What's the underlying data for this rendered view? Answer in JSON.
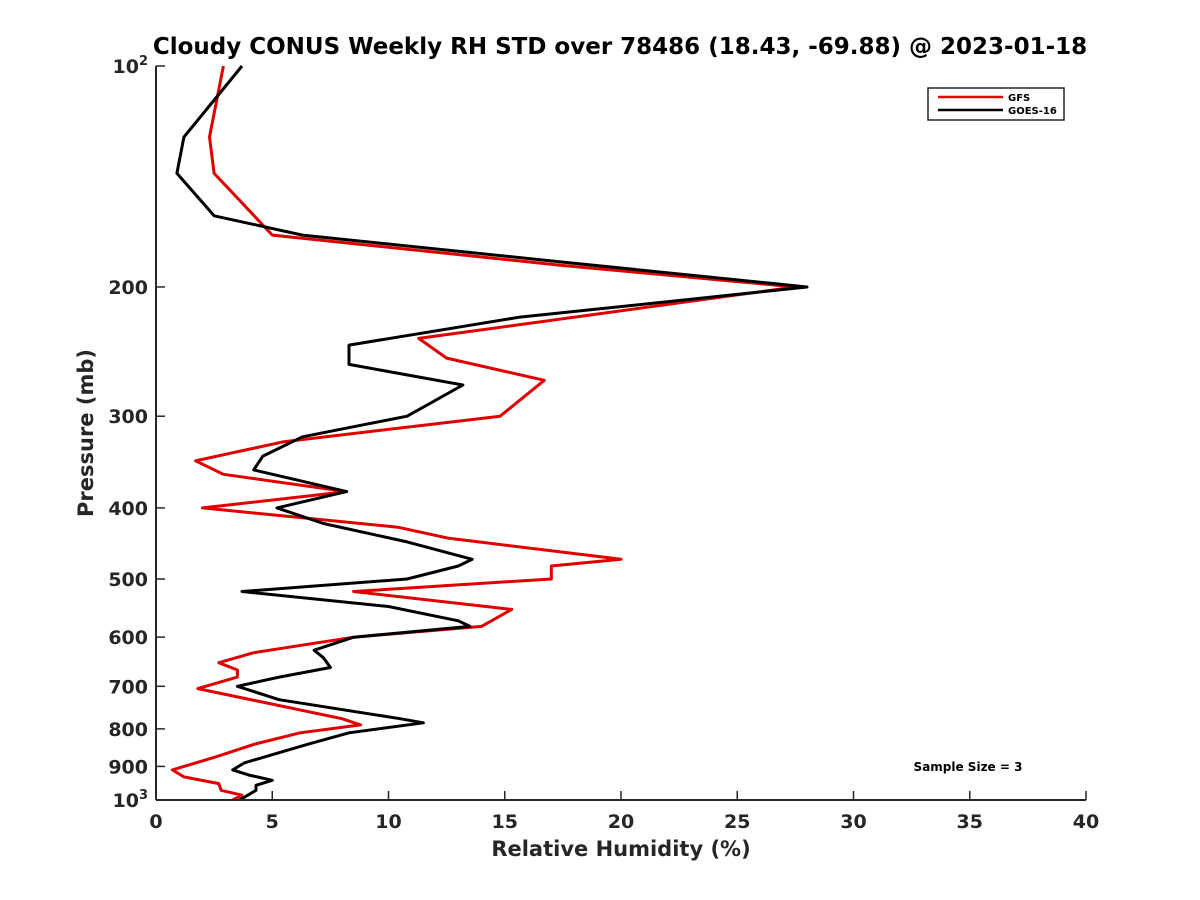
{
  "chart_data": {
    "type": "line",
    "title": "Cloudy CONUS Weekly RH STD over 78486 (18.43, -69.88) @ 2023-01-18",
    "xlabel": "Relative Humidity (%)",
    "ylabel": "Pressure (mb)",
    "xlim": [
      0,
      40
    ],
    "ylim": [
      100,
      1000
    ],
    "y_scale": "log",
    "y_reversed": true,
    "x_ticks": [
      "0",
      "5",
      "10",
      "15",
      "20",
      "25",
      "30",
      "35",
      "40"
    ],
    "y_ticks": [
      {
        "value": 100,
        "base": "10",
        "exp": "2"
      },
      {
        "value": 200,
        "label": "200"
      },
      {
        "value": 300,
        "label": "300"
      },
      {
        "value": 400,
        "label": "400"
      },
      {
        "value": 500,
        "label": "500"
      },
      {
        "value": 600,
        "label": "600"
      },
      {
        "value": 700,
        "label": "700"
      },
      {
        "value": 800,
        "label": "800"
      },
      {
        "value": 900,
        "label": "900"
      },
      {
        "value": 1000,
        "base": "10",
        "exp": "3"
      }
    ],
    "grid": false,
    "legend_position": "top-right",
    "series": [
      {
        "name": "GFS",
        "color": "#e00000",
        "points": [
          [
            2.9,
            100
          ],
          [
            2.3,
            125
          ],
          [
            2.5,
            140
          ],
          [
            5.0,
            170
          ],
          [
            17.5,
            187
          ],
          [
            27.5,
            200
          ],
          [
            11.3,
            235
          ],
          [
            12.5,
            250
          ],
          [
            16.7,
            268
          ],
          [
            14.8,
            300
          ],
          [
            5.5,
            325
          ],
          [
            1.7,
            345
          ],
          [
            2.9,
            360
          ],
          [
            8.2,
            380
          ],
          [
            2.0,
            400
          ],
          [
            10.4,
            425
          ],
          [
            12.6,
            440
          ],
          [
            20.0,
            470
          ],
          [
            17.0,
            480
          ],
          [
            17.0,
            500
          ],
          [
            8.5,
            520
          ],
          [
            15.3,
            550
          ],
          [
            14.0,
            580
          ],
          [
            8.5,
            600
          ],
          [
            4.2,
            630
          ],
          [
            2.7,
            650
          ],
          [
            3.5,
            665
          ],
          [
            3.5,
            680
          ],
          [
            1.8,
            705
          ],
          [
            8.0,
            775
          ],
          [
            8.8,
            790
          ],
          [
            6.2,
            810
          ],
          [
            4.2,
            840
          ],
          [
            2.5,
            875
          ],
          [
            0.7,
            910
          ],
          [
            1.2,
            930
          ],
          [
            2.7,
            950
          ],
          [
            2.8,
            970
          ],
          [
            3.7,
            985
          ],
          [
            3.3,
            1000
          ]
        ]
      },
      {
        "name": "GOES-16",
        "color": "#000000",
        "points": [
          [
            3.7,
            100
          ],
          [
            1.2,
            125
          ],
          [
            0.9,
            140
          ],
          [
            2.5,
            160
          ],
          [
            6.3,
            170
          ],
          [
            17.5,
            185
          ],
          [
            28.0,
            200
          ],
          [
            15.6,
            220
          ],
          [
            8.3,
            240
          ],
          [
            8.3,
            255
          ],
          [
            13.2,
            272
          ],
          [
            10.8,
            300
          ],
          [
            6.3,
            320
          ],
          [
            4.6,
            340
          ],
          [
            4.2,
            355
          ],
          [
            8.2,
            380
          ],
          [
            5.2,
            400
          ],
          [
            7.2,
            420
          ],
          [
            10.8,
            445
          ],
          [
            13.6,
            470
          ],
          [
            13.0,
            480
          ],
          [
            10.8,
            500
          ],
          [
            3.7,
            520
          ],
          [
            10.0,
            545
          ],
          [
            13.0,
            570
          ],
          [
            13.5,
            580
          ],
          [
            8.5,
            600
          ],
          [
            6.8,
            625
          ],
          [
            7.2,
            640
          ],
          [
            7.5,
            660
          ],
          [
            5.3,
            680
          ],
          [
            3.5,
            700
          ],
          [
            5.3,
            730
          ],
          [
            10.5,
            775
          ],
          [
            11.5,
            785
          ],
          [
            8.3,
            810
          ],
          [
            6.5,
            840
          ],
          [
            3.8,
            890
          ],
          [
            3.3,
            910
          ],
          [
            4.0,
            925
          ],
          [
            5.0,
            940
          ],
          [
            4.3,
            955
          ],
          [
            4.3,
            970
          ],
          [
            3.6,
            1000
          ]
        ]
      }
    ],
    "annotation": "Sample Size = 3"
  }
}
